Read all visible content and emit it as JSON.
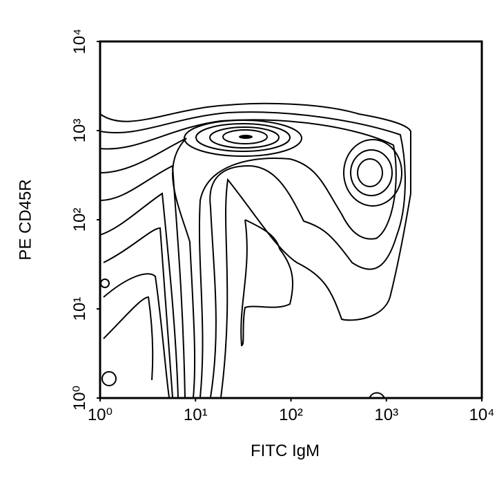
{
  "chart_data": {
    "type": "contour",
    "xlabel": "FITC IgM",
    "ylabel": "PE CD45R",
    "xscale": "log",
    "yscale": "log",
    "xlim": [
      1,
      10000
    ],
    "ylim": [
      1,
      10000
    ],
    "xticks": [
      {
        "value": 1,
        "label": "10⁰"
      },
      {
        "value": 10,
        "label": "10¹"
      },
      {
        "value": 100,
        "label": "10²"
      },
      {
        "value": 1000,
        "label": "10³"
      },
      {
        "value": 10000,
        "label": "10⁴"
      }
    ],
    "yticks": [
      {
        "value": 1,
        "label": "10⁰"
      },
      {
        "value": 10,
        "label": "10¹"
      },
      {
        "value": 100,
        "label": "10²"
      },
      {
        "value": 1000,
        "label": "10³"
      },
      {
        "value": 10000,
        "label": "10⁴"
      }
    ],
    "color": "#000000"
  }
}
